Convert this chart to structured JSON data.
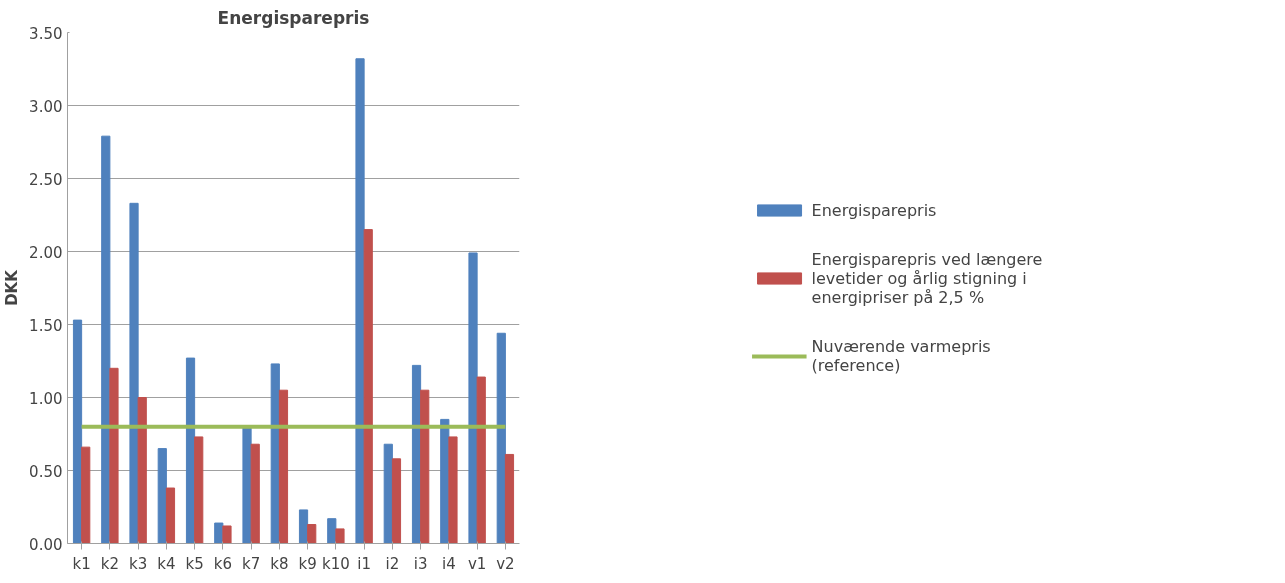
{
  "chart_data": {
    "type": "bar",
    "title": "Energisparepris",
    "ylabel": "DKK",
    "categories": [
      "k1",
      "k2",
      "k3",
      "k4",
      "k5",
      "k6",
      "k7",
      "k8",
      "k9",
      "k10",
      "i1",
      "i2",
      "i3",
      "i4",
      "v1",
      "v2"
    ],
    "series": [
      {
        "name": "Energisparepris",
        "color": "#4f81bd",
        "values": [
          1.53,
          2.79,
          2.33,
          0.65,
          1.27,
          0.14,
          0.8,
          1.23,
          0.23,
          0.17,
          3.32,
          0.68,
          1.22,
          0.85,
          1.99,
          1.44
        ]
      },
      {
        "name": "Energisparepris ved længere levetider og årlig stigning i energipriser på 2,5 %",
        "color": "#c0504d",
        "values": [
          0.66,
          1.2,
          1.0,
          0.38,
          0.73,
          0.12,
          0.68,
          1.05,
          0.13,
          0.1,
          2.15,
          0.58,
          1.05,
          0.73,
          1.14,
          0.61
        ]
      },
      {
        "name": "Nuværende varmepris (reference)",
        "type": "line",
        "color": "#9bbb59",
        "values": [
          0.8,
          0.8,
          0.8,
          0.8,
          0.8,
          0.8,
          0.8,
          0.8,
          0.8,
          0.8,
          0.8,
          0.8,
          0.8,
          0.8,
          0.8,
          0.8
        ]
      }
    ],
    "ylim": [
      0,
      3.5
    ],
    "yticks": [
      {
        "value": 0,
        "label": "0.00"
      },
      {
        "value": 0.5,
        "label": "0.50"
      },
      {
        "value": 1,
        "label": "1.00"
      },
      {
        "value": 1.5,
        "label": "1.50"
      },
      {
        "value": 2,
        "label": "2.00"
      },
      {
        "value": 2.5,
        "label": "2.50"
      },
      {
        "value": 3,
        "label": "3.00"
      },
      {
        "value": 3.5,
        "label": "3.50"
      }
    ],
    "grid": "y",
    "legend": "right"
  }
}
